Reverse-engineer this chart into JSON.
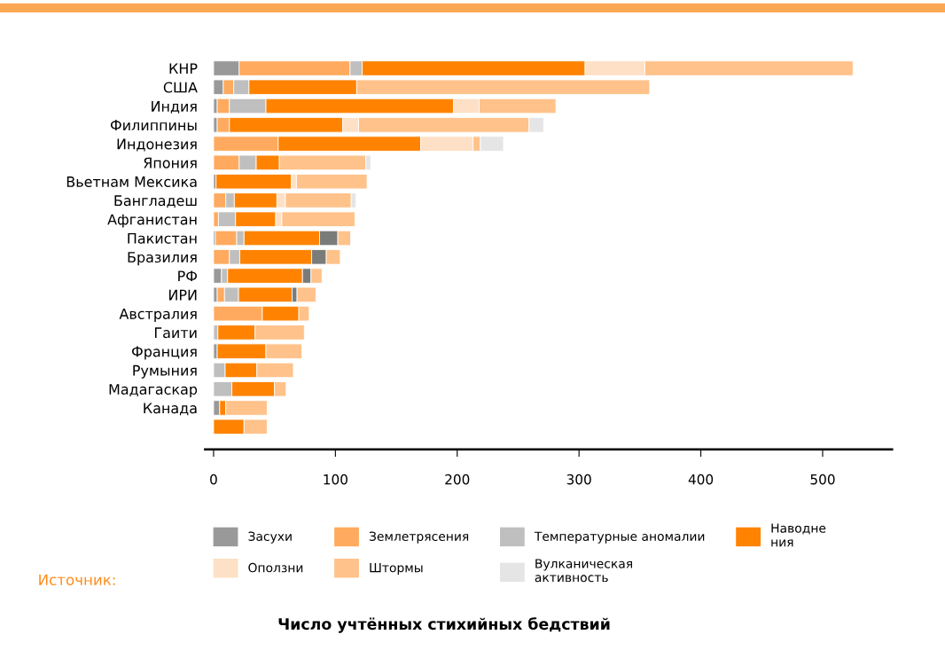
{
  "chart_data": {
    "type": "bar",
    "orientation": "horizontal",
    "stacked": true,
    "categories": [
      "КНР",
      "США",
      "Индия",
      "Филиппины",
      "Индонезия",
      "Япония",
      "Вьетнам Мексика",
      "Бангладеш",
      "Афганистан",
      "Пакистан",
      "Бразилия",
      "РФ",
      "ИРИ",
      "Австралия",
      "Гаити",
      "Франция",
      "Румыния",
      "Мадагаскар",
      "Канада",
      null
    ],
    "series": [
      {
        "name": "Засухи",
        "color": "#999999",
        "values": [
          21,
          8,
          3,
          3,
          null,
          null,
          2,
          null,
          null,
          1.5,
          null,
          6.5,
          3,
          null,
          null,
          3,
          null,
          null,
          5,
          null
        ]
      },
      {
        "name": "Землетрясения",
        "color": "#ffaa5e",
        "values": [
          91,
          8.5,
          10,
          10,
          53,
          21,
          null,
          10,
          4,
          17.5,
          13,
          null,
          6,
          40,
          null,
          null,
          null,
          null,
          null,
          null
        ]
      },
      {
        "name": "Температурные аномалии",
        "color": "#bfbfbf",
        "values": [
          10,
          12.5,
          30,
          null,
          null,
          14,
          null,
          7,
          14,
          6,
          8.5,
          5,
          11.5,
          null,
          3.5,
          null,
          9.5,
          15,
          null,
          null
        ]
      },
      {
        "name": "Наводне\nния",
        "color": "#ff8300",
        "values": [
          183,
          88.5,
          154,
          93,
          117,
          19,
          62,
          35,
          33,
          62,
          59,
          61.5,
          44,
          30,
          30.5,
          40,
          26,
          35,
          5,
          25
        ]
      },
      {
        "color": "#7a7c7a",
        "values": [
          null,
          null,
          null,
          null,
          null,
          null,
          null,
          null,
          null,
          15,
          12,
          7,
          4,
          null,
          null,
          null,
          null,
          null,
          null,
          null
        ]
      },
      {
        "name": "Оползни",
        "color": "#fde0c5",
        "values": [
          49,
          null,
          21,
          13,
          43,
          null,
          4,
          7,
          5,
          null,
          null,
          null,
          null,
          null,
          null,
          null,
          null,
          null,
          null,
          null
        ]
      },
      {
        "name": "Штормы",
        "color": "#ffc28a",
        "values": [
          171,
          240.5,
          63,
          140,
          6,
          71,
          58,
          54,
          60,
          10.5,
          11.5,
          9,
          15.5,
          8.5,
          40.5,
          29.5,
          30,
          9.5,
          34,
          19
        ]
      },
      {
        "name": "Вулканическая\nактивность",
        "color": "#e5e5e5",
        "values": [
          null,
          null,
          null,
          12,
          19,
          4,
          null,
          4,
          null,
          null,
          null,
          null,
          null,
          null,
          null,
          null,
          null,
          null,
          null,
          null
        ]
      }
    ],
    "xlim": [
      -7,
      557
    ],
    "xticks": [
      0,
      100,
      200,
      300,
      400,
      500
    ],
    "legend": "bottom",
    "grid": false,
    "annotations": [
      "Источник:",
      "Число учтённых стихийных бедствий"
    ]
  }
}
